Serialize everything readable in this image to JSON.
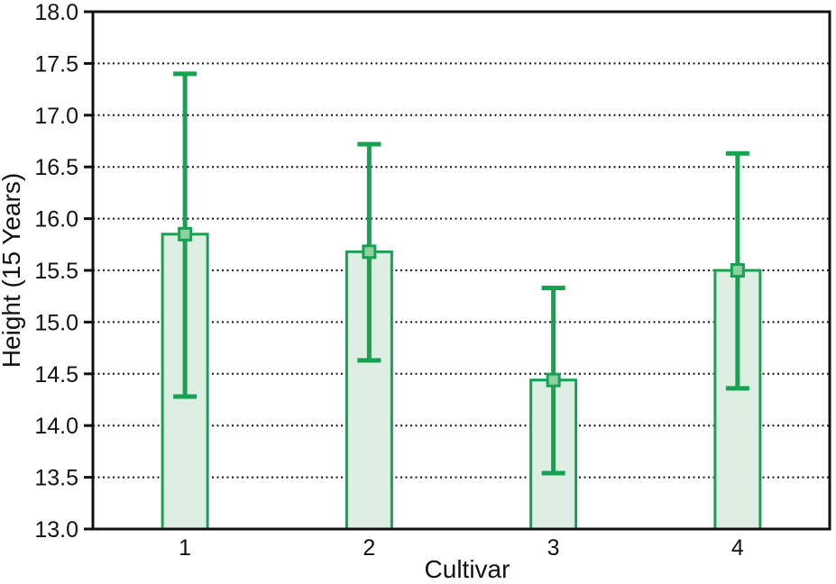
{
  "chart_data": {
    "type": "bar",
    "title": "",
    "xlabel": "Cultivar",
    "ylabel": "Height (15 Years)",
    "categories": [
      "1",
      "2",
      "3",
      "4"
    ],
    "series": [
      {
        "name": "Height (15 Years)",
        "values": [
          15.85,
          15.68,
          14.44,
          15.5
        ],
        "error_high": [
          17.4,
          16.72,
          15.33,
          16.63
        ],
        "error_low": [
          14.28,
          14.63,
          13.54,
          14.36
        ]
      }
    ],
    "ylim": [
      13.0,
      18.0
    ],
    "ytick_step": 0.5,
    "ytick_labels": [
      "13.0",
      "13.5",
      "14.0",
      "14.5",
      "15.0",
      "15.5",
      "16.0",
      "16.5",
      "17.0",
      "17.5",
      "18.0"
    ],
    "grid": {
      "horizontal": true,
      "style": "dotted",
      "vertical": false
    },
    "legend": "none",
    "marker": "square",
    "colors": {
      "bar_fill": "#ddeee3",
      "bar_stroke": "#16a351",
      "error_bar": "#16a351",
      "marker_fill": "#8fd0a0",
      "marker_stroke": "#16a351",
      "axis": "#111111",
      "grid_line": "#111111",
      "text": "#111111",
      "background": "#ffffff"
    }
  }
}
